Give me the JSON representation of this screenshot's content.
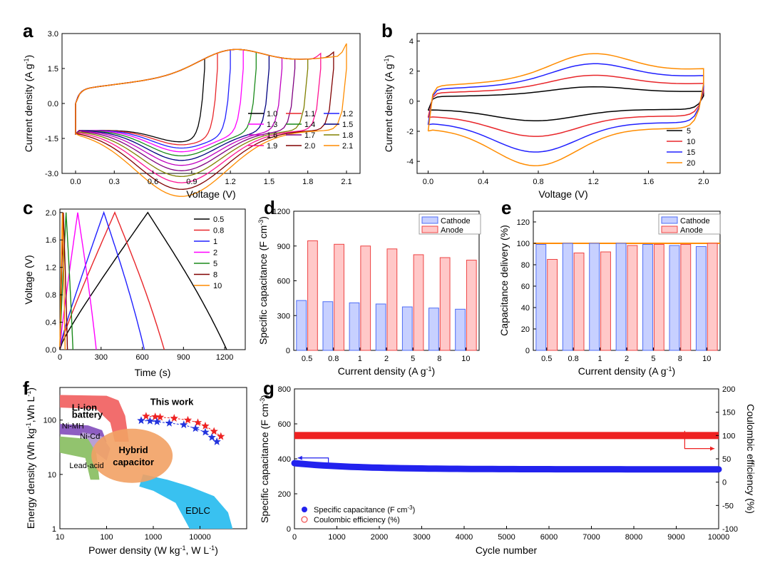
{
  "panel_labels": {
    "a": "a",
    "b": "b",
    "c": "c",
    "d": "d",
    "e": "e",
    "f": "f",
    "g": "g"
  },
  "colors": {
    "black": "#000000",
    "red": "#e8262a",
    "blue": "#2020ff",
    "magenta": "#ff00ff",
    "green": "#1a8a1a",
    "purple": "#800080",
    "olive": "#808000",
    "dark_red": "#800000",
    "orange": "#ff8c00",
    "bar_blue": "#4f6df5",
    "bar_red": "#ee4444",
    "hline": "#ff8c00"
  },
  "chart_data": [
    {
      "id": "a",
      "type": "line",
      "xlabel": "Voltage (V)",
      "ylabel": "Current density (A g",
      "ylabel_sup": "-1",
      "ylabel_end": ")",
      "xlim": [
        -0.105,
        2.205
      ],
      "ylim": [
        -3.0,
        3.0
      ],
      "xticks": [
        "0.0",
        "0.3",
        "0.6",
        "0.9",
        "1.2",
        "1.5",
        "1.8",
        "2.1"
      ],
      "yticks": [
        "-3.0",
        "-1.5",
        "0.0",
        "1.5",
        "3.0"
      ],
      "legend_labels": [
        "1.0",
        "1.1",
        "1.2",
        "1.3",
        "1.4",
        "1.5",
        "1.6",
        "1.7",
        "1.8",
        "1.9",
        "2.0",
        "2.1"
      ],
      "series_colors": [
        "#000000",
        "#e8262a",
        "#2020ff",
        "#ff00ff",
        "#1a8a1a",
        "#000080",
        "#c000c0",
        "#800080",
        "#808000",
        "#ff1493",
        "#800000",
        "#ff8c00"
      ],
      "upper_limit_voltages": [
        1.0,
        1.1,
        1.2,
        1.3,
        1.4,
        1.5,
        1.6,
        1.7,
        1.8,
        1.9,
        2.0,
        2.1
      ],
      "peak_current": 2.3,
      "min_current": -2.55
    },
    {
      "id": "b",
      "type": "line",
      "xlabel": "Voltage (V)",
      "ylabel": "Current density (A g",
      "ylabel_sup": "-1",
      "ylabel_end": ")",
      "xlim": [
        -0.08,
        2.12
      ],
      "ylim": [
        -4.8,
        4.5
      ],
      "xticks": [
        "0.0",
        "0.4",
        "0.8",
        "1.2",
        "1.6",
        "2.0"
      ],
      "yticks": [
        "-4",
        "-2",
        "0",
        "2",
        "4"
      ],
      "legend_labels": [
        "5",
        "10",
        "15",
        "20"
      ],
      "series_colors": [
        "#000000",
        "#e8262a",
        "#2020ff",
        "#ff8c00"
      ],
      "scale": [
        1.0,
        1.8,
        2.6,
        3.3
      ]
    },
    {
      "id": "c",
      "type": "line",
      "xlabel": "Time (s)",
      "ylabel": "Voltage (V)",
      "xlim": [
        0,
        1350
      ],
      "ylim": [
        0,
        2.05
      ],
      "xticks": [
        "0",
        "300",
        "600",
        "900",
        "1200"
      ],
      "yticks": [
        "0.0",
        "0.4",
        "0.8",
        "1.2",
        "1.6",
        "2.0"
      ],
      "legend_labels": [
        "0.5",
        "0.8",
        "1",
        "2",
        "5",
        "8",
        "10"
      ],
      "series_colors": [
        "#000000",
        "#e8262a",
        "#2020ff",
        "#ff00ff",
        "#1a8a1a",
        "#800000",
        "#ff8c00"
      ],
      "charge_times": [
        640,
        400,
        320,
        130,
        45,
        25,
        18
      ],
      "discharge_end_times": [
        1215,
        760,
        615,
        265,
        95,
        55,
        38
      ]
    },
    {
      "id": "d",
      "type": "bar",
      "xlabel": "Current density (A g",
      "xlabel_sup": "-1",
      "xlabel_end": ")",
      "ylabel": "Specific capacitance (F cm",
      "ylabel_sup": "-3",
      "ylabel_end": ")",
      "categories": [
        "0.5",
        "0.8",
        "1",
        "2",
        "5",
        "8",
        "10"
      ],
      "series": [
        {
          "name": "Cathode",
          "values": [
            430,
            420,
            410,
            400,
            375,
            365,
            355
          ]
        },
        {
          "name": "Anode",
          "values": [
            945,
            915,
            900,
            875,
            825,
            800,
            778
          ]
        }
      ],
      "ylim": [
        0,
        1200
      ],
      "yticks": [
        "0",
        "300",
        "600",
        "900",
        "1200"
      ]
    },
    {
      "id": "e",
      "type": "bar",
      "xlabel": "Current density (A g",
      "xlabel_sup": "-1",
      "xlabel_end": ")",
      "ylabel": "Capacitance delivery (%)",
      "categories": [
        "0.5",
        "0.8",
        "1",
        "2",
        "5",
        "8",
        "10"
      ],
      "series": [
        {
          "name": "Cathode",
          "values": [
            99,
            100,
            100,
            100,
            99,
            98,
            97
          ]
        },
        {
          "name": "Anode",
          "values": [
            85,
            91,
            92,
            98,
            99,
            99,
            100
          ]
        }
      ],
      "hline": 100,
      "ylim": [
        0,
        130
      ],
      "yticks": [
        "0",
        "20",
        "40",
        "60",
        "80",
        "100",
        "120"
      ]
    },
    {
      "id": "f",
      "type": "scatter",
      "xlabel": "Power density (W kg",
      "xlabel_sup": "-1",
      "xlabel_mid": ", W L",
      "xlabel_sup2": "-1",
      "xlabel_end": ")",
      "ylabel": "Energy density (Wh kg",
      "ylabel_sup": "-1",
      "ylabel_mid": ",Wh L",
      "ylabel_sup2": "-1",
      "ylabel_end": ")",
      "xlog": [
        1,
        5
      ],
      "ylog": [
        0,
        2.6
      ],
      "xticks": [
        "10",
        "100",
        "1000",
        "10000"
      ],
      "yticks": [
        "1",
        "10",
        "100"
      ],
      "regions": [
        "Li-ion battery",
        "Ni-MH",
        "Ni-Cd",
        "Lead-acid",
        "Hybrid capacitor",
        "EDLC"
      ],
      "region_line1": "Li-ion",
      "region_line2": "battery",
      "hybrid_line1": "Hybrid",
      "hybrid_line2": "capacitor",
      "annotation": "This work",
      "series": [
        {
          "name": "red",
          "x": [
            700,
            1100,
            1400,
            2800,
            5500,
            9000,
            13000,
            20000,
            28000
          ],
          "y": [
            118,
            115,
            113,
            108,
            100,
            90,
            78,
            62,
            50
          ]
        },
        {
          "name": "blue",
          "x": [
            550,
            850,
            1200,
            2200,
            4500,
            8000,
            13000,
            18000,
            23000
          ],
          "y": [
            98,
            96,
            93,
            88,
            82,
            70,
            60,
            48,
            40
          ]
        }
      ]
    },
    {
      "id": "g",
      "type": "scatter",
      "xlabel": "Cycle number",
      "ylabel": "Specific capacitance (F cm",
      "ylabel_sup": "-3",
      "ylabel_end": ")",
      "y2label": "Coulombic efficiency (%)",
      "xlim": [
        0,
        10000
      ],
      "ylim": [
        0,
        800
      ],
      "y2lim": [
        -100,
        200
      ],
      "xticks": [
        "0",
        "1000",
        "2000",
        "3000",
        "4000",
        "5000",
        "6000",
        "7000",
        "8000",
        "9000",
        "10000"
      ],
      "yticks": [
        "0",
        "200",
        "400",
        "600",
        "800"
      ],
      "y2ticks": [
        "-100",
        "-50",
        "0",
        "50",
        "100",
        "150",
        "200"
      ],
      "series": [
        {
          "name": "Specific capacitance (F cm",
          "name_sup": "-3",
          "name_end": ")",
          "start": 375,
          "end": 340
        },
        {
          "name": "Coulombic efficiency (%)",
          "value": 100
        }
      ]
    }
  ]
}
